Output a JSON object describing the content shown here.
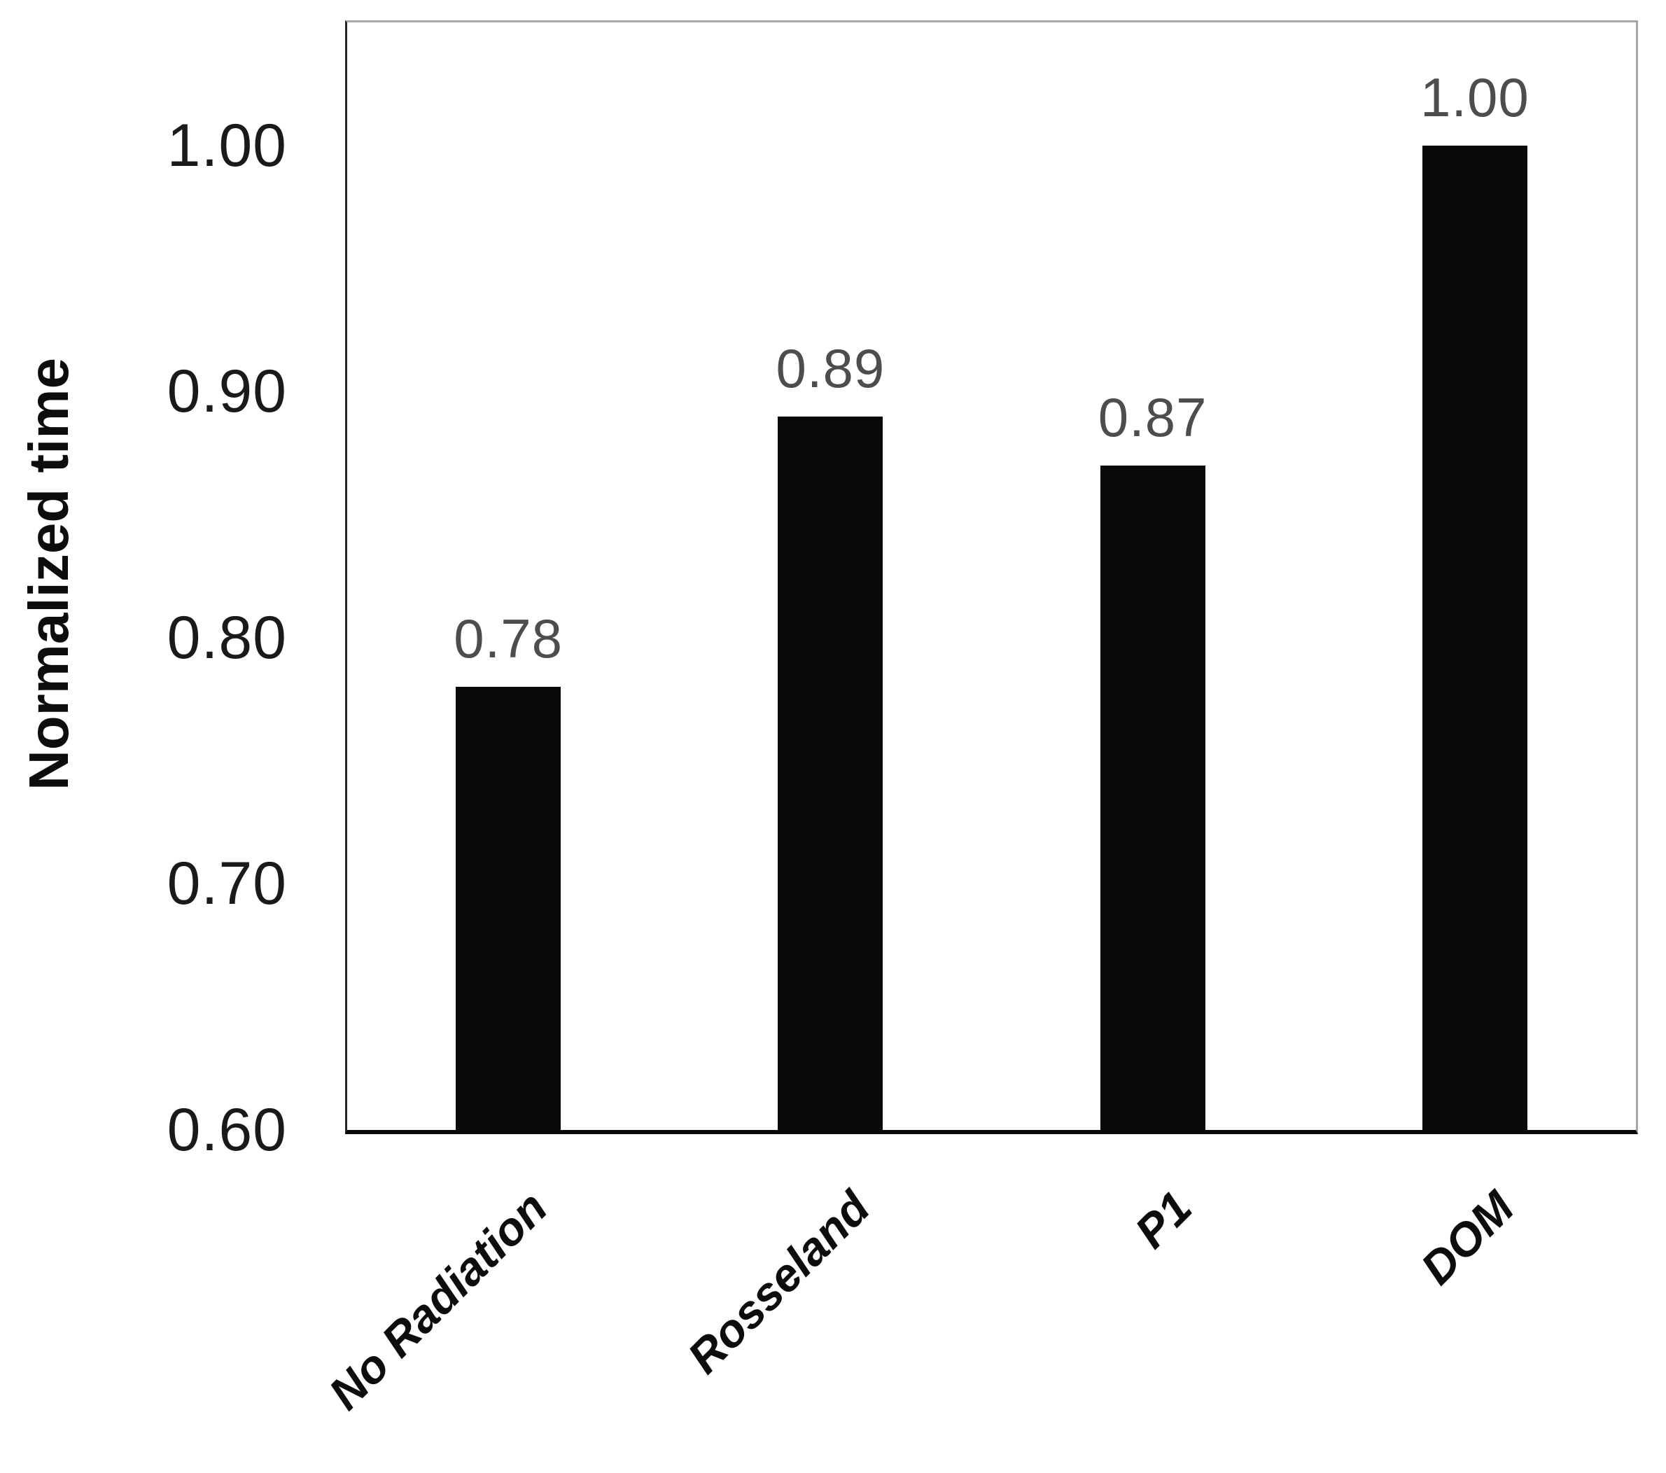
{
  "chart_data": {
    "type": "bar",
    "ylabel": "Normalized time",
    "categories": [
      "No Radiation",
      "Rosseland",
      "P1",
      "DOM"
    ],
    "values": [
      0.78,
      0.89,
      0.87,
      1.0
    ],
    "data_labels": [
      "0.78",
      "0.89",
      "0.87",
      "1.00"
    ],
    "ytick_values": [
      0.6,
      0.7,
      0.8,
      0.9,
      1.0
    ],
    "ytick_labels": [
      "0.60",
      "0.70",
      "0.80",
      "0.90",
      "1.00"
    ],
    "ylim": [
      0.6,
      1.05
    ],
    "grid": false,
    "legend": false,
    "colors": {
      "bar": "#0a0a0a",
      "data_label": "#4d4d4d",
      "tick_label": "#1a1a1a",
      "category_label": "#0d0d0d",
      "axis_title": "#0d0d0d",
      "frame_border": "#a6a6a6",
      "bottom_axis": "#0a0a0a",
      "background": "#ffffff"
    }
  }
}
